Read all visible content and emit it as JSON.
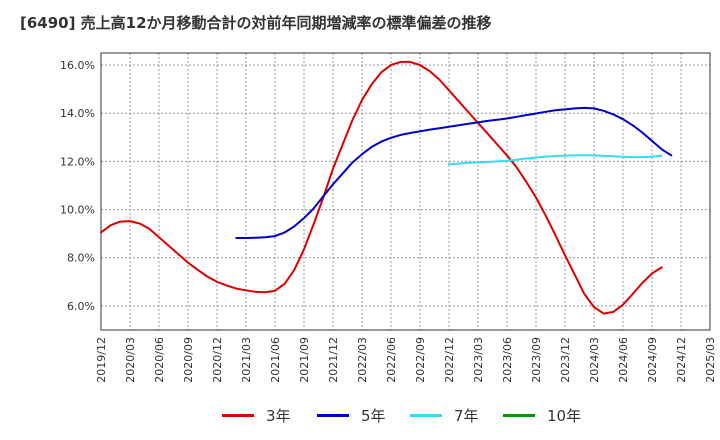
{
  "title": "[6490]  売上高12か月移動合計の対前年同期増減率の標準偏差の推移",
  "colors": {
    "3年": "#dd0000",
    "5年": "#0000cc",
    "7年": "#33ddee",
    "10年": "#009900"
  },
  "chart_data": {
    "type": "line",
    "title": "[6490]  売上高12か月移動合計の対前年同期増減率の標準偏差の推移",
    "xlabel": "",
    "ylabel": "",
    "x_start": "2019/12",
    "x_end": "2025/03",
    "ylim": [
      5.0,
      16.5
    ],
    "yticks": [
      6.0,
      8.0,
      10.0,
      12.0,
      14.0,
      16.0
    ],
    "ytick_labels": [
      "6.0%",
      "8.0%",
      "10.0%",
      "12.0%",
      "14.0%",
      "16.0%"
    ],
    "xtick_labels": [
      "2019/12",
      "2020/03",
      "2020/06",
      "2020/09",
      "2020/12",
      "2021/03",
      "2021/06",
      "2021/09",
      "2021/12",
      "2022/03",
      "2022/06",
      "2022/09",
      "2022/12",
      "2023/03",
      "2023/06",
      "2023/09",
      "2023/12",
      "2024/03",
      "2024/06",
      "2024/09",
      "2024/12",
      "2025/03"
    ],
    "grid": true,
    "legend_position": "bottom",
    "series": [
      {
        "name": "3年",
        "color": "#dd0000",
        "points": [
          [
            "2019/12",
            9.05
          ],
          [
            "2020/01",
            9.35
          ],
          [
            "2020/02",
            9.5
          ],
          [
            "2020/03",
            9.52
          ],
          [
            "2020/04",
            9.42
          ],
          [
            "2020/05",
            9.2
          ],
          [
            "2020/06",
            8.85
          ],
          [
            "2020/07",
            8.5
          ],
          [
            "2020/08",
            8.15
          ],
          [
            "2020/09",
            7.8
          ],
          [
            "2020/10",
            7.5
          ],
          [
            "2020/11",
            7.22
          ],
          [
            "2020/12",
            7.0
          ],
          [
            "2021/01",
            6.85
          ],
          [
            "2021/02",
            6.72
          ],
          [
            "2021/03",
            6.65
          ],
          [
            "2021/04",
            6.58
          ],
          [
            "2021/05",
            6.57
          ],
          [
            "2021/06",
            6.63
          ],
          [
            "2021/07",
            6.92
          ],
          [
            "2021/08",
            7.5
          ],
          [
            "2021/09",
            8.35
          ],
          [
            "2021/10",
            9.4
          ],
          [
            "2021/11",
            10.5
          ],
          [
            "2021/12",
            11.7
          ],
          [
            "2022/01",
            12.7
          ],
          [
            "2022/02",
            13.7
          ],
          [
            "2022/03",
            14.55
          ],
          [
            "2022/04",
            15.2
          ],
          [
            "2022/05",
            15.7
          ],
          [
            "2022/06",
            16.0
          ],
          [
            "2022/07",
            16.13
          ],
          [
            "2022/08",
            16.13
          ],
          [
            "2022/09",
            16.0
          ],
          [
            "2022/10",
            15.75
          ],
          [
            "2022/11",
            15.4
          ],
          [
            "2022/12",
            14.95
          ],
          [
            "2023/01",
            14.5
          ],
          [
            "2023/02",
            14.05
          ],
          [
            "2023/03",
            13.6
          ],
          [
            "2023/04",
            13.15
          ],
          [
            "2023/05",
            12.7
          ],
          [
            "2023/06",
            12.25
          ],
          [
            "2023/07",
            11.75
          ],
          [
            "2023/08",
            11.15
          ],
          [
            "2023/09",
            10.5
          ],
          [
            "2023/10",
            9.75
          ],
          [
            "2023/11",
            8.95
          ],
          [
            "2023/12",
            8.1
          ],
          [
            "2024/01",
            7.3
          ],
          [
            "2024/02",
            6.5
          ],
          [
            "2024/03",
            5.95
          ],
          [
            "2024/04",
            5.68
          ],
          [
            "2024/05",
            5.75
          ],
          [
            "2024/06",
            6.05
          ],
          [
            "2024/07",
            6.5
          ],
          [
            "2024/08",
            6.95
          ],
          [
            "2024/09",
            7.35
          ],
          [
            "2024/10",
            7.6
          ]
        ]
      },
      {
        "name": "5年",
        "color": "#0000cc",
        "points": [
          [
            "2021/02",
            8.82
          ],
          [
            "2021/03",
            8.82
          ],
          [
            "2021/04",
            8.83
          ],
          [
            "2021/05",
            8.85
          ],
          [
            "2021/06",
            8.9
          ],
          [
            "2021/07",
            9.05
          ],
          [
            "2021/08",
            9.3
          ],
          [
            "2021/09",
            9.65
          ],
          [
            "2021/10",
            10.05
          ],
          [
            "2021/11",
            10.55
          ],
          [
            "2021/12",
            11.05
          ],
          [
            "2022/01",
            11.5
          ],
          [
            "2022/02",
            11.95
          ],
          [
            "2022/03",
            12.3
          ],
          [
            "2022/04",
            12.6
          ],
          [
            "2022/05",
            12.82
          ],
          [
            "2022/06",
            12.98
          ],
          [
            "2022/07",
            13.1
          ],
          [
            "2022/08",
            13.18
          ],
          [
            "2022/09",
            13.25
          ],
          [
            "2022/10",
            13.32
          ],
          [
            "2022/11",
            13.38
          ],
          [
            "2022/12",
            13.44
          ],
          [
            "2023/01",
            13.5
          ],
          [
            "2023/02",
            13.56
          ],
          [
            "2023/03",
            13.62
          ],
          [
            "2023/04",
            13.68
          ],
          [
            "2023/05",
            13.73
          ],
          [
            "2023/06",
            13.78
          ],
          [
            "2023/07",
            13.85
          ],
          [
            "2023/08",
            13.92
          ],
          [
            "2023/09",
            13.99
          ],
          [
            "2023/10",
            14.06
          ],
          [
            "2023/11",
            14.12
          ],
          [
            "2023/12",
            14.16
          ],
          [
            "2024/01",
            14.2
          ],
          [
            "2024/02",
            14.22
          ],
          [
            "2024/03",
            14.2
          ],
          [
            "2024/04",
            14.1
          ],
          [
            "2024/05",
            13.95
          ],
          [
            "2024/06",
            13.75
          ],
          [
            "2024/07",
            13.5
          ],
          [
            "2024/08",
            13.2
          ],
          [
            "2024/09",
            12.85
          ],
          [
            "2024/10",
            12.5
          ],
          [
            "2024/11",
            12.25
          ]
        ]
      },
      {
        "name": "7年",
        "color": "#33ddee",
        "points": [
          [
            "2022/12",
            11.88
          ],
          [
            "2023/01",
            11.91
          ],
          [
            "2023/02",
            11.94
          ],
          [
            "2023/03",
            11.96
          ],
          [
            "2023/04",
            11.98
          ],
          [
            "2023/05",
            12.0
          ],
          [
            "2023/06",
            12.03
          ],
          [
            "2023/07",
            12.07
          ],
          [
            "2023/08",
            12.12
          ],
          [
            "2023/09",
            12.16
          ],
          [
            "2023/10",
            12.2
          ],
          [
            "2023/11",
            12.22
          ],
          [
            "2023/12",
            12.24
          ],
          [
            "2024/01",
            12.25
          ],
          [
            "2024/02",
            12.26
          ],
          [
            "2024/03",
            12.25
          ],
          [
            "2024/04",
            12.23
          ],
          [
            "2024/05",
            12.21
          ],
          [
            "2024/06",
            12.19
          ],
          [
            "2024/07",
            12.18
          ],
          [
            "2024/08",
            12.18
          ],
          [
            "2024/09",
            12.2
          ],
          [
            "2024/10",
            12.24
          ]
        ]
      },
      {
        "name": "10年",
        "color": "#009900",
        "points": []
      }
    ]
  }
}
